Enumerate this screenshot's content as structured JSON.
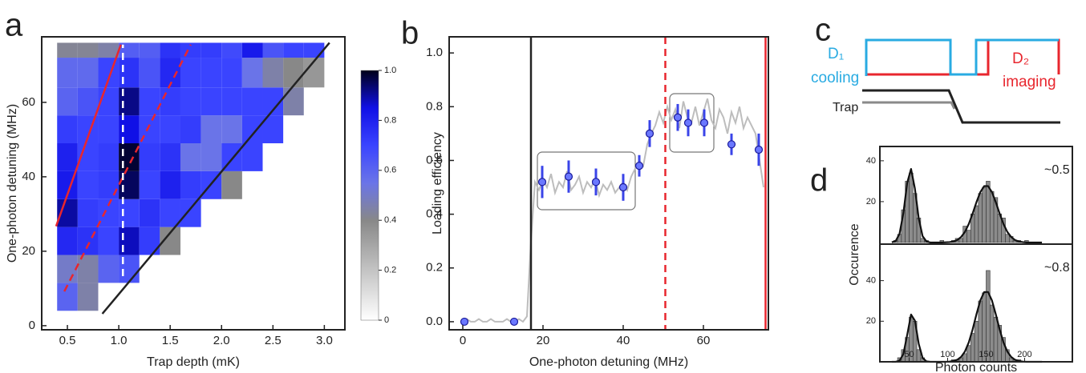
{
  "chart_data": [
    {
      "type": "heatmap",
      "panel": "a",
      "xlabel": "Trap depth (mK)",
      "ylabel": "One-photon detuning (MHz)",
      "xlim": [
        0.25,
        3.2
      ],
      "ylim": [
        -1.1,
        77.6
      ],
      "xticks": [
        0.5,
        {
          "value": 1,
          "label": "1.0"
        },
        1.5,
        {
          "value": 2,
          "label": "2.0"
        },
        2.5,
        {
          "value": 3,
          "label": "3.0"
        }
      ],
      "yticks": [
        0,
        20,
        40,
        60
      ],
      "xbins": [
        0.4,
        0.6,
        0.8,
        1.0,
        1.2,
        1.4,
        1.6,
        1.8,
        2.0,
        2.2,
        2.4,
        2.6,
        2.8,
        3.0
      ],
      "ybins": [
        4,
        11.5,
        19,
        26.5,
        34,
        41.5,
        49,
        56.5,
        64,
        72,
        76
      ],
      "values": [
        [
          0.6,
          0.45,
          null,
          null,
          null,
          null,
          null,
          null,
          null,
          null,
          null,
          null,
          null
        ],
        [
          0.5,
          0.45,
          0.6,
          0.65,
          null,
          null,
          null,
          null,
          null,
          null,
          null,
          null,
          null
        ],
        [
          0.78,
          0.75,
          0.7,
          0.88,
          0.72,
          0.4,
          null,
          null,
          null,
          null,
          null,
          null,
          null
        ],
        [
          0.9,
          0.72,
          0.7,
          0.7,
          0.75,
          0.7,
          0.7,
          null,
          null,
          null,
          null,
          null,
          null
        ],
        [
          0.82,
          0.7,
          0.72,
          0.95,
          0.7,
          0.8,
          0.72,
          0.7,
          0.4,
          null,
          null,
          null,
          null
        ],
        [
          0.8,
          0.7,
          0.72,
          0.98,
          0.72,
          0.75,
          0.55,
          0.55,
          0.7,
          0.7,
          null,
          null,
          null
        ],
        [
          0.72,
          0.7,
          0.7,
          0.85,
          0.7,
          0.7,
          0.72,
          0.55,
          0.55,
          0.7,
          0.7,
          null,
          null
        ],
        [
          0.6,
          0.65,
          0.7,
          0.92,
          0.7,
          0.72,
          0.7,
          0.7,
          0.7,
          0.7,
          0.7,
          0.45,
          null
        ],
        [
          0.58,
          0.58,
          0.7,
          0.75,
          0.65,
          0.78,
          0.7,
          0.7,
          0.7,
          0.55,
          0.45,
          0.4,
          0.35
        ],
        [
          0.42,
          0.42,
          0.45,
          0.62,
          0.62,
          0.75,
          0.72,
          0.72,
          0.68,
          0.82,
          0.65,
          0.7,
          0.7
        ]
      ],
      "clim": [
        0,
        1
      ],
      "colormap": [
        {
          "at": 0,
          "color": "#ffffff"
        },
        {
          "at": 0.4,
          "color": "#888888"
        },
        {
          "at": 0.55,
          "color": "#6a74e8"
        },
        {
          "at": 0.7,
          "color": "#3a44ff"
        },
        {
          "at": 0.85,
          "color": "#1010e6"
        },
        {
          "at": 1,
          "color": "#000018"
        }
      ],
      "colorbar_ticks": [
        0,
        0.2,
        0.4,
        0.6,
        0.8,
        {
          "value": 1,
          "label": "1.0"
        }
      ],
      "lines": [
        {
          "x": [
            0.39,
            1.02
          ],
          "y": [
            26.7,
            75.5
          ],
          "color": "#e8262e",
          "style": "solid"
        },
        {
          "x": [
            0.47,
            1.7
          ],
          "y": [
            9.2,
            75.5
          ],
          "color": "#e8262e",
          "style": "dashed"
        },
        {
          "x": [
            1.04,
            1.04
          ],
          "y": [
            13.3,
            75.5
          ],
          "color": "#ffffff",
          "style": "dashed"
        },
        {
          "x": [
            0.84,
            3.05
          ],
          "y": [
            3.2,
            76
          ],
          "color": "#222222",
          "style": "solid"
        }
      ]
    },
    {
      "type": "line",
      "panel": "b",
      "xlabel": "One-photon detuning (MHz)",
      "ylabel": "Loading efficiency",
      "xlim": [
        -3.4,
        76.2
      ],
      "ylim": [
        -0.03,
        1.06
      ],
      "xticks": [
        0,
        20,
        40,
        60
      ],
      "yticks": [
        {
          "value": 0,
          "label": "0.0"
        },
        0.2,
        0.4,
        0.6,
        0.8,
        {
          "value": 1,
          "label": "1.0"
        }
      ],
      "series": [
        {
          "mark": "line",
          "color": "#bdbdbd",
          "x": [
            0,
            1,
            2,
            3,
            4,
            5,
            6,
            7,
            8,
            9,
            10,
            11,
            12,
            13,
            14,
            15,
            16,
            17,
            18,
            19,
            20,
            21,
            22,
            23,
            24,
            25,
            26,
            27,
            28,
            29,
            30,
            31,
            32,
            33,
            34,
            35,
            36,
            37,
            38,
            39,
            40,
            41,
            42,
            43,
            44,
            45,
            46,
            47,
            48,
            49,
            50,
            51,
            52,
            53,
            54,
            55,
            56,
            57,
            58,
            59,
            60,
            61,
            62,
            63,
            64,
            65,
            66,
            67,
            68,
            69,
            70,
            71,
            72,
            73,
            74,
            75
          ],
          "values": [
            0,
            0.01,
            0,
            0,
            0.01,
            0,
            0,
            0.01,
            0,
            0,
            0,
            0.01,
            0,
            0,
            0.01,
            0,
            0.02,
            0.3,
            0.52,
            0.49,
            0.53,
            0.5,
            0.55,
            0.48,
            0.52,
            0.5,
            0.56,
            0.49,
            0.51,
            0.54,
            0.48,
            0.52,
            0.5,
            0.53,
            0.47,
            0.51,
            0.49,
            0.52,
            0.48,
            0.5,
            0.52,
            0.49,
            0.54,
            0.57,
            0.6,
            0.58,
            0.66,
            0.7,
            0.73,
            0.78,
            0.74,
            0.8,
            0.75,
            0.79,
            0.72,
            0.82,
            0.76,
            0.74,
            0.8,
            0.73,
            0.78,
            0.83,
            0.75,
            0.72,
            0.79,
            0.76,
            0.7,
            0.78,
            0.74,
            0.8,
            0.72,
            0.76,
            0.73,
            0.7,
            0.6,
            0.5
          ]
        },
        {
          "mark": "point",
          "color": "#3a44e8",
          "x": [
            0.4,
            12.8,
            19.8,
            26.4,
            33.2,
            40,
            44,
            46.6,
            53.6,
            56.2,
            60.2,
            67,
            73.8
          ],
          "values": [
            0,
            0,
            0.52,
            0.54,
            0.52,
            0.5,
            0.58,
            0.7,
            0.76,
            0.74,
            0.74,
            0.66,
            0.64
          ],
          "errors": [
            0,
            0,
            0.06,
            0.06,
            0.05,
            0.05,
            0.04,
            0.05,
            0.05,
            0.05,
            0.05,
            0.04,
            0.06
          ]
        }
      ],
      "vlines": [
        {
          "x": 17,
          "color": "#222222",
          "style": "solid"
        },
        {
          "x": 50.5,
          "color": "#e8262e",
          "style": "dashed"
        },
        {
          "x": 75.5,
          "color": "#e8262e",
          "style": "solid"
        }
      ]
    },
    {
      "type": "timing",
      "panel": "c",
      "signals": [
        {
          "label": [
            "D₁",
            "cooling"
          ],
          "color": "#29abe2"
        },
        {
          "label": [
            "D₂",
            "imaging"
          ],
          "color": "#e8262e"
        },
        {
          "label": [
            "Trap"
          ],
          "color": "#222222"
        }
      ]
    },
    {
      "type": "histogram",
      "panel": "d",
      "xlabel": "Photon counts",
      "ylabel": "Occurence",
      "xlim": [
        12,
        262
      ],
      "xticks": [
        50,
        100,
        150,
        200
      ],
      "bins": [
        25,
        30,
        35,
        40,
        45,
        50,
        55,
        60,
        65,
        70,
        75,
        80,
        85,
        90,
        95,
        100,
        105,
        110,
        115,
        120,
        125,
        130,
        135,
        140,
        145,
        150,
        155,
        160,
        165,
        170,
        175,
        180,
        185,
        190,
        195,
        200,
        205,
        210,
        215,
        220,
        225
      ],
      "color": "#8c8c8c",
      "panels": [
        {
          "ylim": [
            -0.8,
            47
          ],
          "yticks": [
            20,
            40
          ],
          "annotation": "~0.5",
          "counts": [
            0,
            1,
            4,
            16,
            30,
            34,
            24,
            12,
            2,
            1,
            0,
            0,
            0,
            1,
            0,
            0,
            1,
            2,
            2,
            8,
            6,
            14,
            18,
            24,
            27,
            30,
            25,
            22,
            14,
            12,
            4,
            3,
            1,
            1,
            0,
            1,
            0,
            0,
            0,
            0
          ],
          "fit": [
            0.1,
            0.7,
            4.2,
            14.3,
            29.2,
            36,
            26.4,
            11.7,
            3.1,
            0.5,
            0,
            0,
            0,
            0,
            0.1,
            0.2,
            0.5,
            1.2,
            2.7,
            5.2,
            9.1,
            14.2,
            19.8,
            24.7,
            27.6,
            27.6,
            24.7,
            19.8,
            14.2,
            9.1,
            5.2,
            2.7,
            1.2,
            0.5,
            0.2,
            0,
            0,
            0,
            0,
            0
          ]
        },
        {
          "ylim": [
            0,
            58
          ],
          "yticks": [
            20,
            40
          ],
          "annotation": "~0.8",
          "counts": [
            0,
            0,
            2,
            6,
            12,
            22,
            20,
            6,
            2,
            0,
            0,
            0,
            0,
            0,
            0,
            0,
            1,
            1,
            2,
            4,
            8,
            14,
            20,
            30,
            34,
            45,
            28,
            22,
            18,
            12,
            6,
            2,
            1,
            1,
            0,
            0,
            0,
            0,
            0,
            0
          ],
          "fit": [
            0,
            0,
            0.5,
            3.8,
            13.3,
            23.3,
            20.3,
            8.8,
            1.9,
            0.2,
            0,
            0,
            0,
            0,
            0,
            0.1,
            0.4,
            1,
            2.4,
            5.1,
            9.6,
            16,
            23.5,
            30.3,
            34.4,
            34.4,
            30.3,
            23.5,
            16,
            9.6,
            5.1,
            2.4,
            1,
            0.4,
            0.1,
            0,
            0,
            0,
            0,
            0
          ]
        }
      ]
    }
  ]
}
